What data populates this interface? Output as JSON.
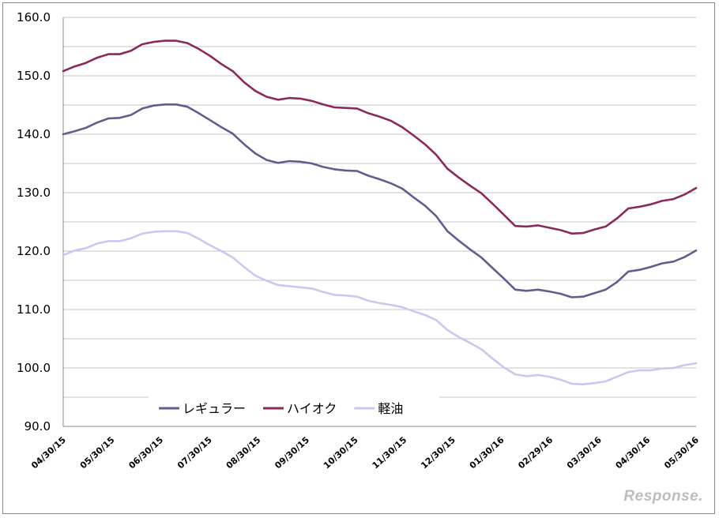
{
  "chart_data": {
    "type": "line",
    "title": "",
    "xlabel": "",
    "ylabel": "",
    "ylim": [
      90,
      160
    ],
    "yticks": [
      "90.0",
      "100.0",
      "110.0",
      "120.0",
      "130.0",
      "140.0",
      "150.0",
      "160.0"
    ],
    "x_tick_labels": [
      "04/30/15",
      "05/30/15",
      "06/30/15",
      "07/30/15",
      "08/30/15",
      "09/30/15",
      "10/30/15",
      "11/30/15",
      "12/30/15",
      "01/30/16",
      "02/29/16",
      "03/30/16",
      "04/30/16",
      "05/30/16"
    ],
    "grid": true,
    "legend": {
      "placement": "bottom-left"
    },
    "x_count": 57,
    "series": [
      {
        "name": "レギュラー",
        "color": "#5f5f8f",
        "values": [
          140.0,
          140.5,
          141.1,
          142.0,
          142.7,
          142.8,
          143.3,
          144.4,
          144.9,
          145.1,
          145.1,
          144.7,
          143.6,
          142.4,
          141.2,
          140.1,
          138.3,
          136.7,
          135.6,
          135.1,
          135.4,
          135.3,
          135.0,
          134.4,
          134.0,
          133.8,
          133.7,
          132.9,
          132.3,
          131.6,
          130.7,
          129.2,
          127.8,
          126.0,
          123.4,
          121.8,
          120.3,
          118.9,
          117.1,
          115.3,
          113.4,
          113.2,
          113.4,
          113.1,
          112.7,
          112.1,
          112.2,
          112.8,
          113.4,
          114.7,
          116.5,
          116.8,
          117.3,
          117.9,
          118.2,
          119.0,
          120.1
        ]
      },
      {
        "name": "ハイオク",
        "color": "#8b2a5a",
        "values": [
          150.8,
          151.6,
          152.2,
          153.1,
          153.7,
          153.7,
          154.3,
          155.4,
          155.8,
          156.0,
          156.0,
          155.6,
          154.6,
          153.4,
          152.0,
          150.8,
          148.9,
          147.4,
          146.4,
          145.9,
          146.2,
          146.1,
          145.7,
          145.1,
          144.6,
          144.5,
          144.4,
          143.6,
          143.0,
          142.3,
          141.2,
          139.8,
          138.3,
          136.5,
          134.1,
          132.6,
          131.2,
          129.9,
          128.1,
          126.2,
          124.3,
          124.2,
          124.4,
          124.0,
          123.6,
          123.0,
          123.1,
          123.7,
          124.2,
          125.6,
          127.3,
          127.6,
          128.0,
          128.6,
          128.9,
          129.7,
          130.8
        ]
      },
      {
        "name": "軽油",
        "color": "#c8c8f2",
        "values": [
          119.3,
          120.1,
          120.5,
          121.3,
          121.7,
          121.7,
          122.2,
          123.0,
          123.3,
          123.4,
          123.4,
          123.1,
          122.1,
          121.0,
          120.0,
          118.9,
          117.3,
          115.8,
          114.9,
          114.2,
          114.0,
          113.8,
          113.6,
          113.0,
          112.5,
          112.4,
          112.2,
          111.5,
          111.1,
          110.8,
          110.4,
          109.7,
          109.1,
          108.2,
          106.5,
          105.3,
          104.3,
          103.2,
          101.6,
          100.1,
          98.9,
          98.6,
          98.8,
          98.5,
          98.0,
          97.3,
          97.2,
          97.4,
          97.7,
          98.5,
          99.3,
          99.6,
          99.6,
          99.9,
          100.0,
          100.5,
          100.8
        ]
      }
    ]
  },
  "watermark": "Response."
}
